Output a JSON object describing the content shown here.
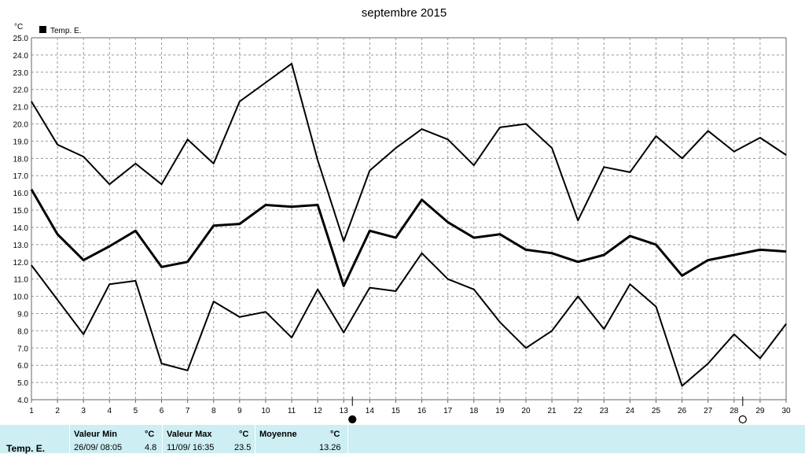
{
  "chart_data": {
    "type": "line",
    "title": "septembre 2015",
    "ylabel": "°C",
    "legend": {
      "label": "Temp. E.",
      "placement": "top-left"
    },
    "ylim": [
      4.0,
      25.0
    ],
    "yticks": [
      "4.0",
      "5.0",
      "6.0",
      "7.0",
      "8.0",
      "9.0",
      "10.0",
      "11.0",
      "12.0",
      "13.0",
      "14.0",
      "15.0",
      "16.0",
      "17.0",
      "18.0",
      "19.0",
      "20.0",
      "21.0",
      "22.0",
      "23.0",
      "24.0",
      "25.0"
    ],
    "categories": [
      "1",
      "2",
      "3",
      "4",
      "5",
      "6",
      "7",
      "8",
      "9",
      "10",
      "11",
      "12",
      "13",
      "14",
      "15",
      "16",
      "17",
      "18",
      "19",
      "20",
      "21",
      "22",
      "23",
      "24",
      "25",
      "26",
      "27",
      "28",
      "29",
      "30"
    ],
    "grid": true,
    "series": [
      {
        "role": "max",
        "values": [
          21.3,
          18.8,
          18.1,
          16.5,
          17.7,
          16.5,
          19.1,
          17.7,
          21.3,
          22.4,
          23.5,
          17.9,
          13.2,
          17.3,
          18.6,
          19.7,
          19.1,
          17.6,
          19.8,
          20.0,
          18.6,
          14.4,
          17.5,
          17.2,
          19.3,
          18.0,
          19.6,
          18.4,
          19.2,
          18.2
        ]
      },
      {
        "role": "mean",
        "name": "Temp. E.",
        "values": [
          16.2,
          13.6,
          12.1,
          12.9,
          13.8,
          11.7,
          12.0,
          14.1,
          14.2,
          15.3,
          15.2,
          15.3,
          10.6,
          13.8,
          13.4,
          15.6,
          14.3,
          13.4,
          13.6,
          12.7,
          12.5,
          12.0,
          12.4,
          13.5,
          13.0,
          11.2,
          12.1,
          12.4,
          12.7,
          12.6
        ]
      },
      {
        "role": "min",
        "values": [
          11.8,
          9.8,
          7.8,
          10.7,
          10.9,
          6.1,
          5.7,
          9.7,
          8.8,
          9.1,
          7.6,
          10.4,
          7.9,
          10.5,
          10.3,
          12.5,
          11.0,
          10.4,
          8.5,
          7.0,
          8.0,
          10.0,
          8.1,
          10.7,
          9.4,
          4.8,
          6.1,
          7.8,
          6.4,
          8.4
        ]
      }
    ],
    "markers": [
      {
        "category": "13",
        "icon": "full-moon-icon"
      },
      {
        "category": "28",
        "icon": "new-moon-icon"
      }
    ]
  },
  "footer": {
    "series_label": "Temp. E.",
    "min_header": "Valeur Min",
    "min_unit": "°C",
    "min_date": "26/09/  08:05",
    "min_value": "4.8",
    "max_header": "Valeur Max",
    "max_unit": "°C",
    "max_date": "11/09/  16:35",
    "max_value": "23.5",
    "mean_header": "Moyenne",
    "mean_unit": "°C",
    "mean_value": "13.26"
  }
}
